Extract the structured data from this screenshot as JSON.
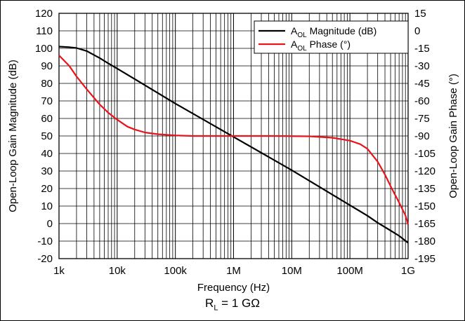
{
  "chart_data": {
    "type": "line",
    "xlabel": "Frequency (Hz)",
    "ylabel_left": "Open-Loop Gain Magnitude (dB)",
    "ylabel_right": "Open-Loop Gain Phase (°)",
    "x_scale": "log",
    "xlim": [
      1000,
      1000000000
    ],
    "x_ticks": [
      {
        "value": 1000,
        "label": "1k"
      },
      {
        "value": 10000,
        "label": "10k"
      },
      {
        "value": 100000,
        "label": "100k"
      },
      {
        "value": 1000000,
        "label": "1M"
      },
      {
        "value": 10000000,
        "label": "10M"
      },
      {
        "value": 100000000,
        "label": "100M"
      },
      {
        "value": 1000000000,
        "label": "1G"
      }
    ],
    "ylim_left": [
      -20,
      120
    ],
    "y_ticks_left": [
      120,
      110,
      100,
      90,
      80,
      70,
      60,
      50,
      40,
      30,
      20,
      10,
      0,
      -10,
      -20
    ],
    "ylim_right": [
      -195,
      15
    ],
    "y_ticks_right": [
      15,
      0,
      -15,
      -30,
      -45,
      -60,
      -75,
      -90,
      -105,
      -120,
      -135,
      -150,
      -165,
      -180,
      -195
    ],
    "grid": true,
    "legend_position": "top-right",
    "series": [
      {
        "name": "A_OL Magnitude (dB)",
        "name_main": "A",
        "name_sub": "OL",
        "name_rest": " Magnitude (dB)",
        "color": "#000000",
        "axis": "left",
        "x": [
          1000,
          1500,
          2000,
          3000,
          5000,
          7000,
          10000,
          20000,
          50000,
          100000,
          1000000,
          10000000,
          100000000,
          200000000,
          300000000,
          500000000,
          700000000,
          1000000000
        ],
        "y": [
          101,
          100.7,
          100.2,
          98.5,
          94.5,
          91.5,
          88.5,
          82.5,
          74.5,
          68.5,
          49.5,
          30.5,
          10.5,
          4.5,
          0.5,
          -4,
          -7,
          -11
        ]
      },
      {
        "name": "A_OL Phase (°)",
        "name_main": "A",
        "name_sub": "OL",
        "name_rest": " Phase (°)",
        "color": "#e8131b",
        "axis": "right",
        "x": [
          1000,
          1500,
          2000,
          3000,
          5000,
          7000,
          10000,
          15000,
          20000,
          30000,
          50000,
          100000,
          200000,
          500000,
          1000000,
          5000000,
          20000000,
          50000000,
          100000000,
          150000000,
          200000000,
          300000000,
          400000000,
          500000000,
          700000000,
          900000000,
          1000000000
        ],
        "y": [
          -21,
          -30,
          -39,
          -50,
          -63,
          -70,
          -76,
          -82,
          -84.5,
          -87,
          -88.5,
          -89.5,
          -90,
          -90,
          -90,
          -90,
          -90.3,
          -91.5,
          -94,
          -97,
          -101,
          -112,
          -123,
          -133,
          -147,
          -158,
          -166
        ]
      }
    ]
  },
  "caption": {
    "main": "R",
    "sub": "L",
    "rest": " = 1 GΩ"
  }
}
